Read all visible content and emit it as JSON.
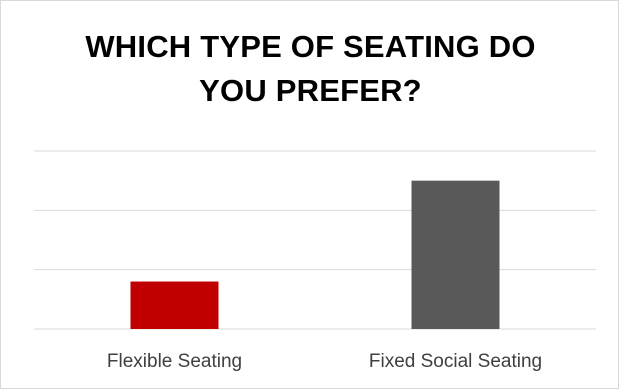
{
  "chart_data": {
    "type": "bar",
    "title": "WHICH TYPE OF SEATING DO YOU PREFER?",
    "title_lines": [
      "WHICH TYPE OF SEATING DO",
      "YOU PREFER?"
    ],
    "categories": [
      "Flexible Seating",
      "Fixed Social Seating"
    ],
    "values": [
      0.8,
      2.5
    ],
    "colors": [
      "#c00000",
      "#595959"
    ],
    "ylim": [
      0,
      3
    ],
    "grid": true,
    "xlabel": "",
    "ylabel": ""
  }
}
